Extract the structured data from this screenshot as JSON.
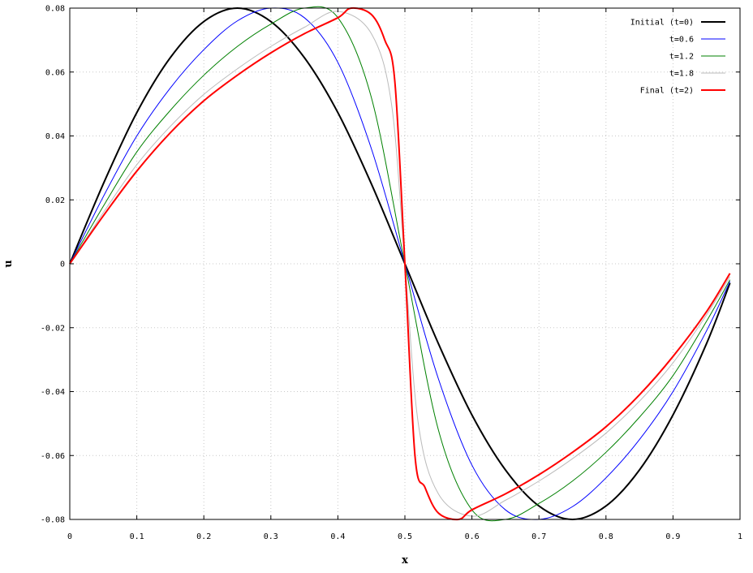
{
  "chart_data": {
    "type": "line",
    "xlabel": "x",
    "ylabel": "u",
    "xlim": [
      0,
      1
    ],
    "ylim": [
      -0.08,
      0.08
    ],
    "grid": true,
    "legend_placement": "top-right",
    "x_ticks": [
      "0",
      "0.1",
      "0.2",
      "0.3",
      "0.4",
      "0.5",
      "0.6",
      "0.7",
      "0.8",
      "0.9",
      "1"
    ],
    "y_ticks": [
      "-0.08",
      "-0.06",
      "-0.04",
      "-0.02",
      "0",
      "0.02",
      "0.04",
      "0.06",
      "0.08"
    ],
    "series": [
      {
        "name": "Initial (t=0)",
        "color": "#000000",
        "points": [
          [
            0,
            0
          ],
          [
            0.05,
            0.025
          ],
          [
            0.1,
            0.0473
          ],
          [
            0.15,
            0.0645
          ],
          [
            0.2,
            0.0758
          ],
          [
            0.25,
            0.08
          ],
          [
            0.3,
            0.0758
          ],
          [
            0.35,
            0.0645
          ],
          [
            0.4,
            0.0473
          ],
          [
            0.45,
            0.025
          ],
          [
            0.5,
            0
          ],
          [
            0.55,
            -0.025
          ],
          [
            0.6,
            -0.0473
          ],
          [
            0.65,
            -0.0645
          ],
          [
            0.7,
            -0.0758
          ],
          [
            0.75,
            -0.08
          ],
          [
            0.8,
            -0.0758
          ],
          [
            0.85,
            -0.0645
          ],
          [
            0.9,
            -0.0473
          ],
          [
            0.95,
            -0.025
          ],
          [
            0.985,
            -0.006
          ]
        ]
      },
      {
        "name": "t=0.6",
        "color": "#0000ff",
        "points": [
          [
            0,
            0
          ],
          [
            0.05,
            0.021
          ],
          [
            0.1,
            0.04
          ],
          [
            0.15,
            0.055
          ],
          [
            0.2,
            0.067
          ],
          [
            0.25,
            0.076
          ],
          [
            0.3,
            0.08
          ],
          [
            0.35,
            0.077
          ],
          [
            0.4,
            0.063
          ],
          [
            0.45,
            0.036
          ],
          [
            0.5,
            0
          ],
          [
            0.55,
            -0.036
          ],
          [
            0.6,
            -0.063
          ],
          [
            0.65,
            -0.077
          ],
          [
            0.7,
            -0.08
          ],
          [
            0.75,
            -0.076
          ],
          [
            0.8,
            -0.067
          ],
          [
            0.85,
            -0.055
          ],
          [
            0.9,
            -0.04
          ],
          [
            0.95,
            -0.021
          ],
          [
            0.985,
            -0.0055
          ]
        ]
      },
      {
        "name": "t=1.2",
        "color": "#008000",
        "points": [
          [
            0,
            0
          ],
          [
            0.05,
            0.018
          ],
          [
            0.1,
            0.035
          ],
          [
            0.15,
            0.048
          ],
          [
            0.2,
            0.059
          ],
          [
            0.25,
            0.068
          ],
          [
            0.3,
            0.075
          ],
          [
            0.35,
            0.08
          ],
          [
            0.4,
            0.077
          ],
          [
            0.45,
            0.052
          ],
          [
            0.5,
            0
          ],
          [
            0.55,
            -0.052
          ],
          [
            0.6,
            -0.077
          ],
          [
            0.65,
            -0.08
          ],
          [
            0.7,
            -0.075
          ],
          [
            0.75,
            -0.068
          ],
          [
            0.8,
            -0.059
          ],
          [
            0.85,
            -0.048
          ],
          [
            0.9,
            -0.035
          ],
          [
            0.95,
            -0.018
          ],
          [
            0.985,
            -0.005
          ]
        ]
      },
      {
        "name": "t=1.8",
        "color": "#bbbbbb",
        "points": [
          [
            0,
            0
          ],
          [
            0.05,
            0.016
          ],
          [
            0.1,
            0.031
          ],
          [
            0.15,
            0.043
          ],
          [
            0.2,
            0.053
          ],
          [
            0.25,
            0.061
          ],
          [
            0.3,
            0.068
          ],
          [
            0.35,
            0.074
          ],
          [
            0.4,
            0.079
          ],
          [
            0.45,
            0.072
          ],
          [
            0.48,
            0.05
          ],
          [
            0.5,
            0
          ],
          [
            0.52,
            -0.05
          ],
          [
            0.55,
            -0.072
          ],
          [
            0.6,
            -0.079
          ],
          [
            0.65,
            -0.074
          ],
          [
            0.7,
            -0.068
          ],
          [
            0.75,
            -0.061
          ],
          [
            0.8,
            -0.053
          ],
          [
            0.85,
            -0.043
          ],
          [
            0.9,
            -0.031
          ],
          [
            0.95,
            -0.016
          ],
          [
            0.985,
            -0.004
          ]
        ]
      },
      {
        "name": "Final (t=2)",
        "color": "#ff0000",
        "points": [
          [
            0,
            0
          ],
          [
            0.05,
            0.015
          ],
          [
            0.1,
            0.029
          ],
          [
            0.15,
            0.041
          ],
          [
            0.2,
            0.051
          ],
          [
            0.25,
            0.059
          ],
          [
            0.3,
            0.066
          ],
          [
            0.35,
            0.072
          ],
          [
            0.4,
            0.077
          ],
          [
            0.42,
            0.08
          ],
          [
            0.45,
            0.078
          ],
          [
            0.47,
            0.07
          ],
          [
            0.485,
            0.057
          ],
          [
            0.5,
            0
          ],
          [
            0.515,
            -0.06
          ],
          [
            0.53,
            -0.07
          ],
          [
            0.55,
            -0.078
          ],
          [
            0.58,
            -0.08
          ],
          [
            0.6,
            -0.077
          ],
          [
            0.65,
            -0.072
          ],
          [
            0.7,
            -0.066
          ],
          [
            0.75,
            -0.059
          ],
          [
            0.8,
            -0.051
          ],
          [
            0.85,
            -0.041
          ],
          [
            0.9,
            -0.029
          ],
          [
            0.95,
            -0.015
          ],
          [
            0.985,
            -0.003
          ]
        ]
      }
    ]
  }
}
